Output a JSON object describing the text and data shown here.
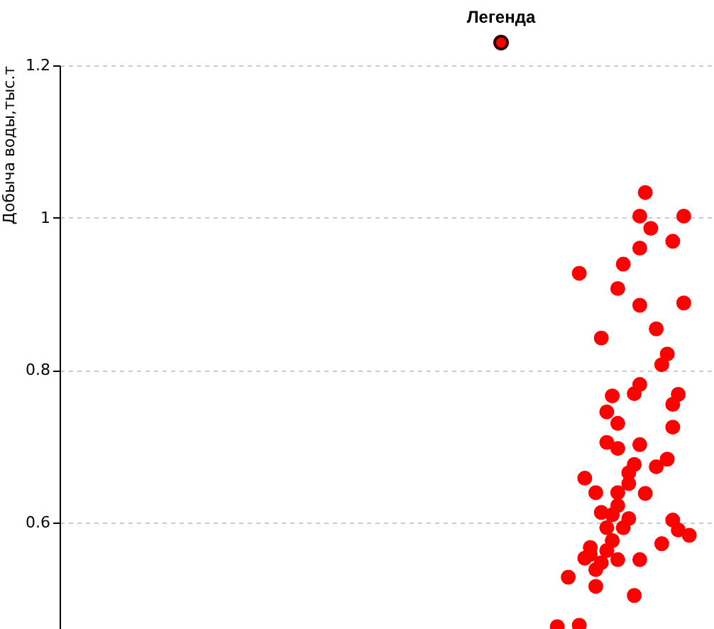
{
  "chart_data": {
    "type": "scatter",
    "ylabel": "Добыча воды,тыс.т",
    "legend_title": "Легенда",
    "categories": [
      null,
      null,
      null,
      null,
      null,
      null,
      null,
      null,
      null,
      null,
      null,
      null,
      null,
      null,
      null,
      null,
      null,
      null,
      null,
      null,
      null,
      null,
      null,
      null,
      null,
      null,
      null,
      null,
      null,
      null,
      null,
      null,
      null,
      null,
      null,
      null,
      null,
      null,
      null,
      null,
      null,
      null,
      null,
      null,
      null,
      null,
      null,
      null,
      null,
      null,
      null,
      null,
      null,
      null,
      null,
      null,
      null,
      null,
      null,
      null,
      null,
      null,
      null,
      null,
      null,
      null,
      null,
      null,
      null,
      null,
      null,
      null,
      null,
      null,
      null,
      null,
      null,
      null,
      null,
      null,
      null,
      null,
      null,
      null,
      null,
      null,
      null,
      null,
      null,
      null,
      null,
      null,
      null,
      null,
      null,
      null,
      null,
      null,
      null,
      null,
      null,
      null,
      null,
      null,
      null,
      null,
      null,
      null,
      null,
      null,
      null,
      null,
      null,
      null,
      null,
      null,
      null,
      null,
      null
    ],
    "ylim": [
      0.46,
      1.2
    ],
    "yticks": [
      0.6,
      0.8,
      1,
      1.2
    ],
    "grid": "y",
    "tick_labels": "y",
    "marker": "circle",
    "series": [
      {
        "color": "#ff0000",
        "values": [
          null,
          null,
          null,
          null,
          null,
          null,
          null,
          null,
          null,
          null,
          null,
          null,
          null,
          null,
          null,
          null,
          null,
          null,
          null,
          null,
          null,
          null,
          null,
          null,
          null,
          null,
          null,
          null,
          null,
          null,
          null,
          null,
          null,
          null,
          null,
          null,
          null,
          null,
          null,
          null,
          null,
          null,
          null,
          null,
          null,
          null,
          null,
          null,
          null,
          null,
          null,
          null,
          null,
          null,
          null,
          null,
          null,
          null,
          null,
          null,
          null,
          null,
          null,
          null,
          null,
          null,
          null,
          null,
          null,
          null,
          null,
          null,
          null,
          null,
          null,
          null,
          null,
          null,
          null,
          null,
          null,
          null,
          null,
          null,
          null,
          null,
          null,
          null,
          null,
          null,
          0.463,
          null,
          0.528,
          null,
          0.927,
          0.658,
          0.567,
          0.639,
          0.842,
          0.745,
          0.766,
          0.907,
          0.939,
          0.665,
          0.769,
          1.002,
          1.033,
          0.986,
          0.854,
          0.807,
          0.821,
          0.969,
          0.768,
          1.002,
          0.583,
          null,
          null,
          null,
          null
        ]
      },
      {
        "color": "#ff0000",
        "values": [
          null,
          null,
          null,
          null,
          null,
          null,
          null,
          null,
          null,
          null,
          null,
          null,
          null,
          null,
          null,
          null,
          null,
          null,
          null,
          null,
          null,
          null,
          null,
          null,
          null,
          null,
          null,
          null,
          null,
          null,
          null,
          null,
          null,
          null,
          null,
          null,
          null,
          null,
          null,
          null,
          null,
          null,
          null,
          null,
          null,
          null,
          null,
          null,
          null,
          null,
          null,
          null,
          null,
          null,
          null,
          null,
          null,
          null,
          null,
          null,
          null,
          null,
          null,
          null,
          null,
          null,
          null,
          null,
          null,
          null,
          null,
          null,
          null,
          null,
          null,
          null,
          null,
          null,
          null,
          null,
          null,
          null,
          null,
          null,
          null,
          null,
          null,
          null,
          null,
          null,
          null,
          null,
          null,
          null,
          0.465,
          0.553,
          0.558,
          0.538,
          0.613,
          0.705,
          0.61,
          0.73,
          0.593,
          0.651,
          0.676,
          0.96,
          0.638,
          null,
          0.673,
          0.572,
          0.683,
          0.755,
          0.59,
          0.888,
          null,
          null,
          null,
          null,
          null
        ]
      },
      {
        "color": "#ff0000",
        "values": [
          null,
          null,
          null,
          null,
          null,
          null,
          null,
          null,
          null,
          null,
          null,
          null,
          null,
          null,
          null,
          null,
          null,
          null,
          null,
          null,
          null,
          null,
          null,
          null,
          null,
          null,
          null,
          null,
          null,
          null,
          null,
          null,
          null,
          null,
          null,
          null,
          null,
          null,
          null,
          null,
          null,
          null,
          null,
          null,
          null,
          null,
          null,
          null,
          null,
          null,
          null,
          null,
          null,
          null,
          null,
          null,
          null,
          null,
          null,
          null,
          null,
          null,
          null,
          null,
          null,
          null,
          null,
          null,
          null,
          null,
          null,
          null,
          null,
          null,
          null,
          null,
          null,
          null,
          null,
          null,
          null,
          null,
          null,
          null,
          null,
          null,
          null,
          null,
          null,
          null,
          null,
          null,
          null,
          null,
          null,
          null,
          null,
          0.516,
          0.547,
          0.593,
          0.576,
          0.697,
          null,
          0.605,
          0.504,
          0.885,
          null,
          null,
          null,
          null,
          null,
          0.725,
          null,
          null,
          null,
          null,
          null,
          null,
          null
        ]
      },
      {
        "color": "#ff0000",
        "values": [
          null,
          null,
          null,
          null,
          null,
          null,
          null,
          null,
          null,
          null,
          null,
          null,
          null,
          null,
          null,
          null,
          null,
          null,
          null,
          null,
          null,
          null,
          null,
          null,
          null,
          null,
          null,
          null,
          null,
          null,
          null,
          null,
          null,
          null,
          null,
          null,
          null,
          null,
          null,
          null,
          null,
          null,
          null,
          null,
          null,
          null,
          null,
          null,
          null,
          null,
          null,
          null,
          null,
          null,
          null,
          null,
          null,
          null,
          null,
          null,
          null,
          null,
          null,
          null,
          null,
          null,
          null,
          null,
          null,
          null,
          null,
          null,
          null,
          null,
          null,
          null,
          null,
          null,
          null,
          null,
          null,
          null,
          null,
          null,
          null,
          null,
          null,
          null,
          null,
          null,
          null,
          null,
          null,
          null,
          null,
          null,
          null,
          null,
          null,
          0.563,
          null,
          0.639,
          null,
          null,
          null,
          0.781,
          null,
          null,
          null,
          null,
          null,
          0.603,
          null,
          null,
          null,
          null,
          null,
          null,
          null
        ]
      },
      {
        "color": "#ff0000",
        "values": [
          null,
          null,
          null,
          null,
          null,
          null,
          null,
          null,
          null,
          null,
          null,
          null,
          null,
          null,
          null,
          null,
          null,
          null,
          null,
          null,
          null,
          null,
          null,
          null,
          null,
          null,
          null,
          null,
          null,
          null,
          null,
          null,
          null,
          null,
          null,
          null,
          null,
          null,
          null,
          null,
          null,
          null,
          null,
          null,
          null,
          null,
          null,
          null,
          null,
          null,
          null,
          null,
          null,
          null,
          null,
          null,
          null,
          null,
          null,
          null,
          null,
          null,
          null,
          null,
          null,
          null,
          null,
          null,
          null,
          null,
          null,
          null,
          null,
          null,
          null,
          null,
          null,
          null,
          null,
          null,
          null,
          null,
          null,
          null,
          null,
          null,
          null,
          null,
          null,
          null,
          null,
          null,
          null,
          null,
          null,
          null,
          null,
          null,
          null,
          null,
          null,
          0.622,
          null,
          null,
          null,
          0.702,
          null,
          null,
          null,
          null,
          null,
          null,
          null,
          null,
          null,
          null,
          null,
          null,
          null
        ]
      },
      {
        "color": "#ff0000",
        "values": [
          null,
          null,
          null,
          null,
          null,
          null,
          null,
          null,
          null,
          null,
          null,
          null,
          null,
          null,
          null,
          null,
          null,
          null,
          null,
          null,
          null,
          null,
          null,
          null,
          null,
          null,
          null,
          null,
          null,
          null,
          null,
          null,
          null,
          null,
          null,
          null,
          null,
          null,
          null,
          null,
          null,
          null,
          null,
          null,
          null,
          null,
          null,
          null,
          null,
          null,
          null,
          null,
          null,
          null,
          null,
          null,
          null,
          null,
          null,
          null,
          null,
          null,
          null,
          null,
          null,
          null,
          null,
          null,
          null,
          null,
          null,
          null,
          null,
          null,
          null,
          null,
          null,
          null,
          null,
          null,
          null,
          null,
          null,
          null,
          null,
          null,
          null,
          null,
          null,
          null,
          null,
          null,
          null,
          null,
          null,
          null,
          null,
          null,
          null,
          null,
          null,
          0.551,
          null,
          null,
          null,
          0.551,
          null,
          null,
          null,
          null,
          null,
          null,
          null,
          null,
          null,
          null,
          null,
          null,
          null
        ]
      }
    ]
  }
}
